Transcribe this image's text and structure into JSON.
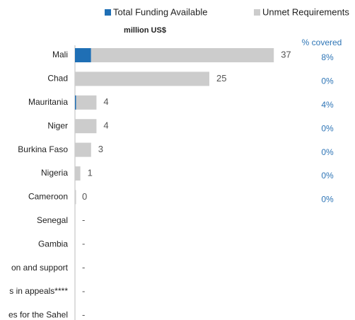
{
  "chart_data": {
    "type": "bar",
    "orientation": "horizontal",
    "stacked": true,
    "subtitle": "million US$",
    "categories": [
      "Mali",
      "Chad",
      "Mauritania",
      "Niger",
      "Burkina Faso",
      "Nigeria",
      "Cameroon",
      "Senegal",
      "Gambia",
      "on and support",
      "s in appeals****",
      "es for the Sahel"
    ],
    "series": [
      {
        "name": "Total Funding Available",
        "color": "#1f6fb5",
        "values": [
          3,
          0,
          0.2,
          0,
          0,
          0,
          0,
          null,
          null,
          null,
          null,
          null
        ]
      },
      {
        "name": "Unmet Requirements",
        "color": "#cccccc",
        "values": [
          34,
          25,
          3.8,
          4,
          3,
          1,
          0.2,
          null,
          null,
          null,
          null,
          null
        ]
      }
    ],
    "totals": [
      37,
      25,
      4,
      4,
      3,
      1,
      0,
      null,
      null,
      null,
      null,
      null
    ],
    "total_labels": [
      "37",
      "25",
      "4",
      "4",
      "3",
      "1",
      "0",
      "-",
      "-",
      "-",
      "-",
      "-"
    ],
    "percent_covered": {
      "title": "% covered",
      "color": "#2e75b6",
      "values": [
        8,
        0,
        4,
        0,
        0,
        0,
        0
      ],
      "value_labels": [
        "8%",
        "0%",
        "4%",
        "0%",
        "0%",
        "0%",
        "0%"
      ]
    },
    "xlim": [
      0,
      40
    ]
  }
}
